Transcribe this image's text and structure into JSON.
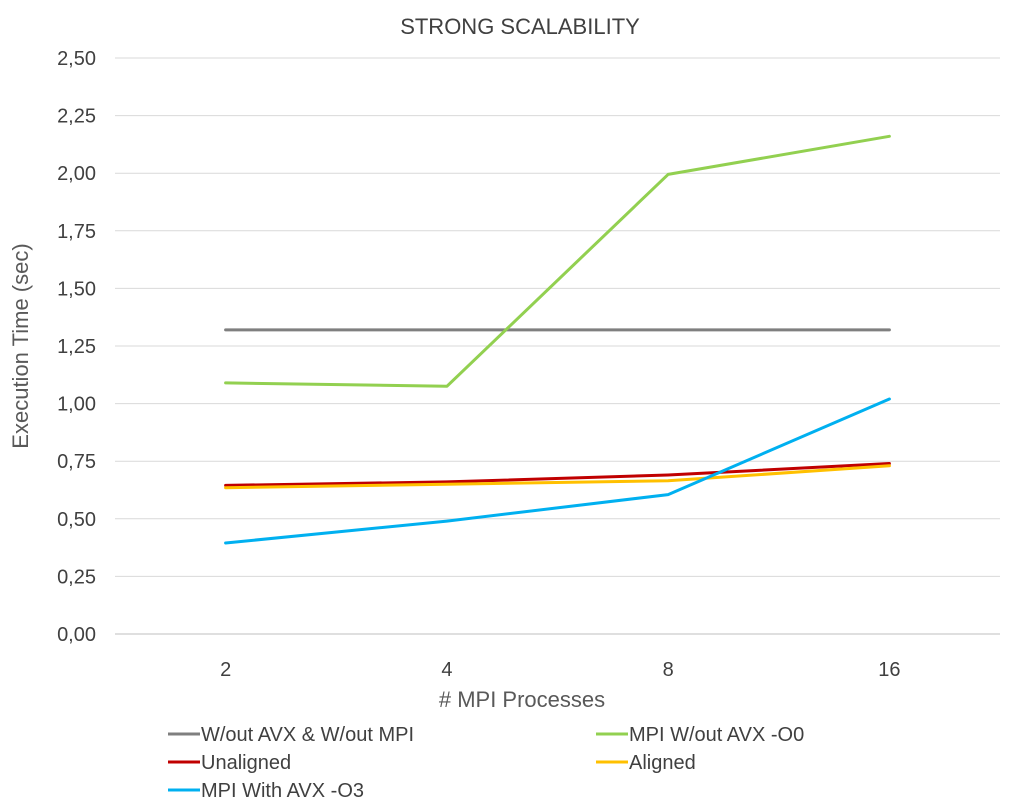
{
  "chart_data": {
    "type": "line",
    "title": "STRONG SCALABILITY",
    "xlabel": "# MPI Processes",
    "ylabel": "Execution Time (sec)",
    "categories": [
      "2",
      "4",
      "8",
      "16"
    ],
    "ylim": [
      0,
      2.5
    ],
    "yticks": [
      "0,00",
      "0,25",
      "0,50",
      "0,75",
      "1,00",
      "1,25",
      "1,50",
      "1,75",
      "2,00",
      "2,25",
      "2,50"
    ],
    "grid": true,
    "legend_position": "bottom",
    "series": [
      {
        "name": "W/out AVX & W/out MPI",
        "color": "#7f7f7f",
        "values": [
          1.32,
          1.32,
          1.32,
          1.32
        ]
      },
      {
        "name": "MPI W/out AVX -O0",
        "color": "#92d050",
        "values": [
          1.09,
          1.075,
          1.995,
          2.16
        ]
      },
      {
        "name": "Unaligned",
        "color": "#c00000",
        "values": [
          0.645,
          0.66,
          0.69,
          0.74
        ]
      },
      {
        "name": "Aligned",
        "color": "#ffc000",
        "values": [
          0.635,
          0.65,
          0.665,
          0.73
        ]
      },
      {
        "name": "MPI With AVX -O3",
        "color": "#00b0f0",
        "values": [
          0.395,
          0.49,
          0.605,
          1.02
        ]
      }
    ]
  }
}
